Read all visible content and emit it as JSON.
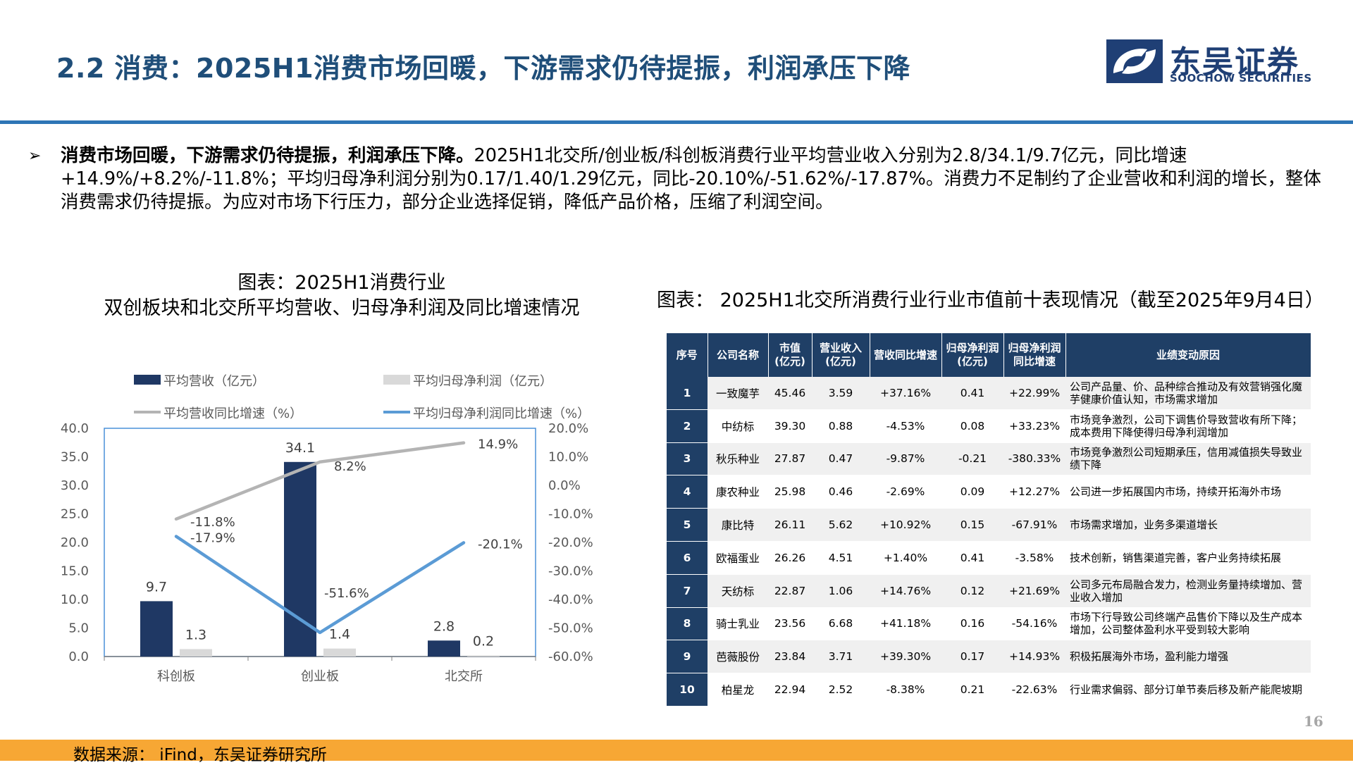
{
  "header": {
    "title": "2.2 消费：2025H1消费市场回暖，下游需求仍待提振，利润承压下降",
    "logo_name": "东吴证券",
    "logo_sub": "SOOCHOW SECURITIES"
  },
  "bullet": {
    "bold": "消费市场回暖，下游需求仍待提振，利润承压下降。",
    "text": "2025H1北交所/创业板/科创板消费行业平均营业收入分别为2.8/34.1/9.7亿元，同比增速+14.9%/+8.2%/-11.8%；平均归母净利润分别为0.17/1.40/1.29亿元，同比-20.10%/-51.62%/-17.87%。消费力不足制约了企业营收和利润的增长，整体消费需求仍待提振。为应对市场下行压力，部分企业选择促销，降低产品价格，压缩了利润空间。"
  },
  "chart_caption": {
    "line1": "图表：2025H1消费行业",
    "line2": "双创板块和北交所平均营收、归母净利润及同比增速情况"
  },
  "chart_data": {
    "type": "bar",
    "categories": [
      "科创板",
      "创业板",
      "北交所"
    ],
    "series": [
      {
        "name": "平均营收（亿元）",
        "kind": "bar",
        "axis": "left",
        "values": [
          9.7,
          34.1,
          2.8
        ],
        "labels": [
          "9.7",
          "34.1",
          "2.8"
        ],
        "color": "#1f3864"
      },
      {
        "name": "平均归母净利润（亿元）",
        "kind": "bar",
        "axis": "left",
        "values": [
          1.3,
          1.4,
          0.2
        ],
        "labels": [
          "1.3",
          "1.4",
          "0.2"
        ],
        "color": "#d9d9d9"
      },
      {
        "name": "平均营收同比增速（%）",
        "kind": "line",
        "axis": "right",
        "values": [
          -11.8,
          8.2,
          14.9
        ],
        "labels": [
          "-11.8%",
          "8.2%",
          "14.9%"
        ],
        "color": "#b4b4b4"
      },
      {
        "name": "平均归母净利润同比增速（%）",
        "kind": "line",
        "axis": "right",
        "values": [
          -17.9,
          -51.6,
          -20.1
        ],
        "labels": [
          "-17.9%",
          "-51.6%",
          "-20.1%"
        ],
        "color": "#5b9bd5"
      }
    ],
    "y_left": {
      "ticks": [
        "0.0",
        "5.0",
        "10.0",
        "15.0",
        "20.0",
        "25.0",
        "30.0",
        "35.0",
        "40.0"
      ],
      "ylim": [
        0,
        40
      ]
    },
    "y_right": {
      "ticks": [
        "-60.0%",
        "-50.0%",
        "-40.0%",
        "-30.0%",
        "-20.0%",
        "-10.0%",
        "0.0%",
        "10.0%",
        "20.0%"
      ],
      "ylim": [
        -60,
        20
      ]
    },
    "grid": false,
    "legend_position": "top"
  },
  "table_caption": "图表： 2025H1北交所消费行业行业市值前十表现情况（截至2025年9月4日）",
  "table": {
    "headers": [
      "序号",
      "公司名称",
      "市值\n(亿元)",
      "营业收入\n(亿元)",
      "营收同比增速",
      "归母净利润\n(亿元)",
      "归母净利润\n同比增速",
      "业绩变动原因"
    ],
    "rows": [
      [
        "1",
        "一致魔芋",
        "45.46",
        "3.59",
        "+37.16%",
        "0.41",
        "+22.99%",
        "公司产品量、价、品种综合推动及有效营销强化魔芋健康价值认知，市场需求增加"
      ],
      [
        "2",
        "中纺标",
        "39.30",
        "0.88",
        "-4.53%",
        "0.08",
        "+33.23%",
        "市场竞争激烈，公司下调售价导致营收有所下降；成本费用下降使得归母净利润增加"
      ],
      [
        "3",
        "秋乐种业",
        "27.87",
        "0.47",
        "-9.87%",
        "-0.21",
        "-380.33%",
        "市场竞争激烈公司短期承压，信用减值损失导致业绩下降"
      ],
      [
        "4",
        "康农种业",
        "25.98",
        "0.46",
        "-2.69%",
        "0.09",
        "+12.27%",
        "公司进一步拓展国内市场，持续开拓海外市场"
      ],
      [
        "5",
        "康比特",
        "26.11",
        "5.62",
        "+10.92%",
        "0.15",
        "-67.91%",
        "市场需求增加，业务多渠道增长"
      ],
      [
        "6",
        "欧福蛋业",
        "26.26",
        "4.51",
        "+1.40%",
        "0.41",
        "-3.58%",
        "技术创新，销售渠道完善，客户业务持续拓展"
      ],
      [
        "7",
        "天纺标",
        "22.87",
        "1.06",
        "+14.76%",
        "0.12",
        "+21.69%",
        "公司多元布局融合发力，检测业务量持续增加、营业收入增加"
      ],
      [
        "8",
        "骑士乳业",
        "23.56",
        "6.68",
        "+41.18%",
        "0.16",
        "-54.16%",
        "市场下行导致公司终端产品售价下降以及生产成本增加，公司整体盈利水平受到较大影响"
      ],
      [
        "9",
        "芭薇股份",
        "23.84",
        "3.71",
        "+39.30%",
        "0.17",
        "+14.93%",
        "积极拓展海外市场，盈利能力增强"
      ],
      [
        "10",
        "柏星龙",
        "22.94",
        "2.52",
        "-8.38%",
        "0.21",
        "-22.63%",
        "行业需求偏弱、部分订单节奏后移及新产能爬坡期"
      ]
    ]
  },
  "footer": {
    "page_number": "16",
    "source": "数据来源： iFind，东吴证券研究所"
  }
}
